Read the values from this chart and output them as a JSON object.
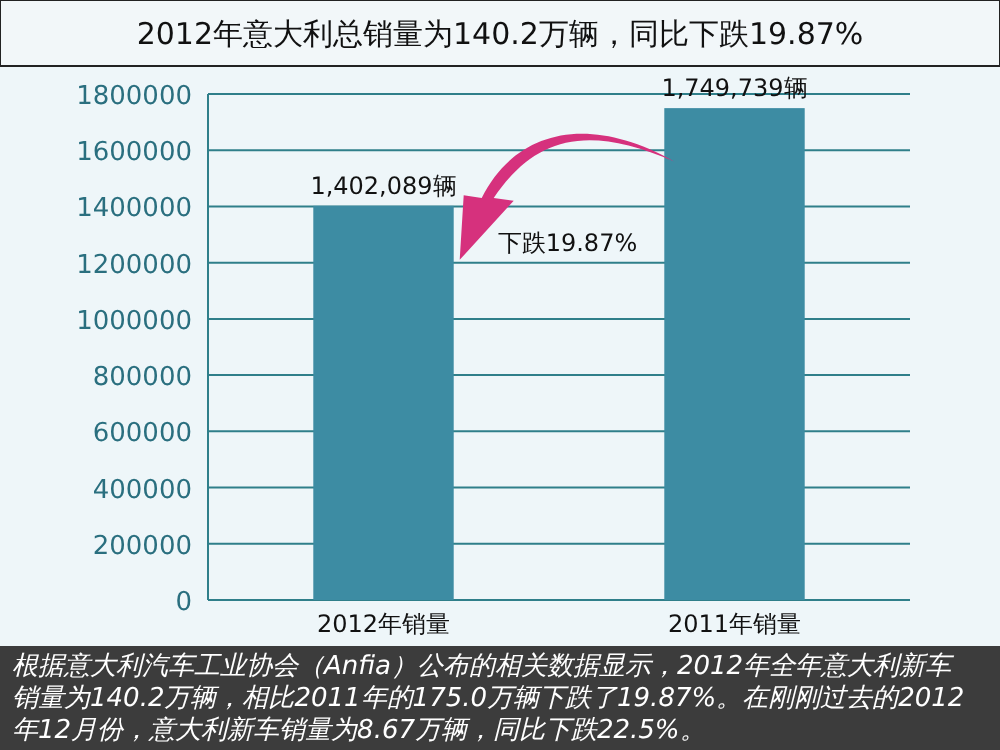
{
  "chart_data": {
    "type": "bar",
    "title": "2012年意大利总销量为140.2万辆，同比下跌19.87%",
    "categories": [
      "2012年销量",
      "2011年销量"
    ],
    "values": [
      1402089,
      1749739
    ],
    "color": "#3d8ca3",
    "value_labels": [
      "1,402,089辆",
      "1,749,739辆"
    ],
    "ylim": [
      0,
      1800000
    ],
    "yticks": [
      0,
      200000,
      400000,
      600000,
      800000,
      1000000,
      1200000,
      1400000,
      1600000,
      1800000
    ],
    "grid": "y",
    "annotations": [
      "下跌19.87%",
      "根据意大利汽车工业协会（Anfia）公布的相关数据显示，2012年全年意大利新车销量为140.2万辆，相比2011年的175.0万辆下跌了19.87%。在刚刚过去的2012年12月份，意大利新车销量为8.67万辆，同比下跌22.5%。"
    ]
  }
}
